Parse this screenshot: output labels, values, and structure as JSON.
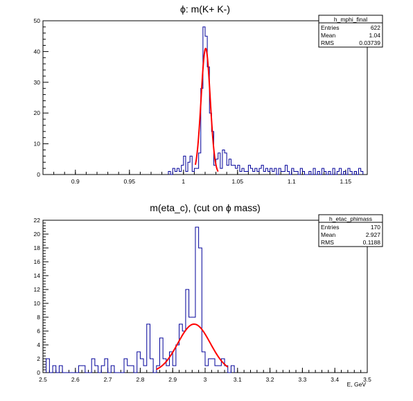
{
  "chart_data": [
    {
      "type": "histogram",
      "title": "ϕ: m(K+ K-)",
      "xlabel": "",
      "ylabel": "",
      "xlim": [
        0.87,
        1.17
      ],
      "ylim": [
        0,
        50
      ],
      "xticks": [
        "0.9",
        "0.95",
        "1",
        "1.05",
        "1.1",
        "1.15"
      ],
      "yticks": [
        "0",
        "10",
        "20",
        "30",
        "40",
        "50"
      ],
      "stats": {
        "name": "h_mphi_final",
        "rows": [
          {
            "label": "Entries",
            "value": "622"
          },
          {
            "label": "Mean",
            "value": "1.04"
          },
          {
            "label": "RMS",
            "value": "0.03739"
          }
        ]
      },
      "series": [
        {
          "kind": "histogram",
          "bin_width": 0.002,
          "bin_starts": [
            0.986,
            0.988,
            0.99,
            0.992,
            0.994,
            0.996,
            0.998,
            1.0,
            1.002,
            1.004,
            1.006,
            1.008,
            1.01,
            1.012,
            1.014,
            1.016,
            1.018,
            1.02,
            1.022,
            1.024,
            1.026,
            1.028,
            1.03,
            1.032,
            1.034,
            1.036,
            1.038,
            1.04,
            1.042,
            1.044,
            1.046,
            1.048,
            1.05,
            1.052,
            1.054,
            1.056,
            1.058,
            1.06,
            1.062,
            1.064,
            1.066,
            1.068,
            1.07,
            1.072,
            1.074,
            1.076,
            1.078,
            1.08,
            1.082,
            1.084,
            1.086,
            1.088,
            1.09,
            1.092,
            1.094,
            1.096,
            1.098,
            1.1,
            1.102,
            1.104,
            1.106,
            1.108,
            1.11,
            1.112,
            1.114,
            1.116,
            1.118,
            1.12,
            1.122,
            1.124,
            1.126,
            1.128,
            1.13,
            1.132,
            1.134,
            1.136,
            1.138,
            1.14,
            1.142,
            1.144,
            1.146,
            1.148,
            1.15,
            1.152,
            1.154,
            1.156,
            1.158,
            1.16,
            1.162,
            1.164
          ],
          "counts": [
            1,
            0,
            2,
            1,
            2,
            1,
            3,
            6,
            1,
            4,
            6,
            1,
            2,
            2,
            7,
            28,
            48,
            45,
            35,
            20,
            14,
            3,
            5,
            7,
            2,
            8,
            7,
            3,
            5,
            3,
            3,
            2,
            3,
            1,
            2,
            1,
            1,
            3,
            2,
            1,
            2,
            1,
            2,
            3,
            1,
            2,
            1,
            2,
            1,
            2,
            0,
            2,
            1,
            1,
            3,
            1,
            0,
            2,
            1,
            1,
            0,
            2,
            1,
            0,
            0,
            1,
            0,
            2,
            0,
            1,
            0,
            2,
            1,
            0,
            1,
            0,
            2,
            0,
            1,
            2,
            0,
            1,
            0,
            2,
            1,
            0,
            1,
            0,
            2,
            1
          ]
        },
        {
          "kind": "gaussian-fit",
          "amplitude": 41,
          "mean": 1.0205,
          "sigma": 0.0042,
          "x_range": [
            1.011,
            1.032
          ]
        }
      ]
    },
    {
      "type": "histogram",
      "title": "m(eta_c), (cut on ϕ mass)",
      "xlabel": "E, GeV",
      "ylabel": "",
      "xlim": [
        2.5,
        3.5
      ],
      "ylim": [
        0,
        22
      ],
      "xticks": [
        "2.5",
        "2.6",
        "2.7",
        "2.8",
        "2.9",
        "3",
        "3.1",
        "3.2",
        "3.3",
        "3.4",
        "3.5"
      ],
      "yticks": [
        "0",
        "2",
        "4",
        "6",
        "8",
        "10",
        "12",
        "14",
        "16",
        "18",
        "20",
        "22"
      ],
      "stats": {
        "name": "h_etac_phimass",
        "rows": [
          {
            "label": "Entries",
            "value": "170"
          },
          {
            "label": "Mean",
            "value": "2.927"
          },
          {
            "label": "RMS",
            "value": "0.1188"
          }
        ]
      },
      "series": [
        {
          "kind": "histogram",
          "bin_width": 0.01,
          "bin_starts": [
            2.51,
            2.52,
            2.53,
            2.54,
            2.55,
            2.56,
            2.57,
            2.58,
            2.59,
            2.6,
            2.61,
            2.62,
            2.63,
            2.64,
            2.65,
            2.66,
            2.67,
            2.68,
            2.69,
            2.7,
            2.71,
            2.72,
            2.73,
            2.74,
            2.75,
            2.76,
            2.77,
            2.78,
            2.79,
            2.8,
            2.81,
            2.82,
            2.83,
            2.84,
            2.85,
            2.86,
            2.87,
            2.88,
            2.89,
            2.9,
            2.91,
            2.92,
            2.93,
            2.94,
            2.95,
            2.96,
            2.97,
            2.98,
            2.99,
            3.0,
            3.01,
            3.02,
            3.03,
            3.04,
            3.05,
            3.06,
            3.07,
            3.08
          ],
          "counts": [
            2,
            0,
            1,
            0,
            1,
            0,
            0,
            0,
            0,
            0,
            1,
            1,
            0,
            0,
            2,
            1,
            0,
            1,
            2,
            0,
            1,
            0,
            0,
            0,
            2,
            1,
            1,
            0,
            3,
            2,
            1,
            7,
            2,
            0,
            1,
            5,
            2,
            1,
            3,
            1,
            4,
            7,
            6,
            12,
            8,
            8,
            21,
            18,
            3,
            1,
            2,
            2,
            1,
            1,
            2,
            1,
            0,
            1
          ]
        },
        {
          "kind": "gaussian-fit",
          "amplitude": 7,
          "mean": 2.966,
          "sigma": 0.05,
          "x_range": [
            2.85,
            3.07
          ]
        }
      ]
    }
  ]
}
